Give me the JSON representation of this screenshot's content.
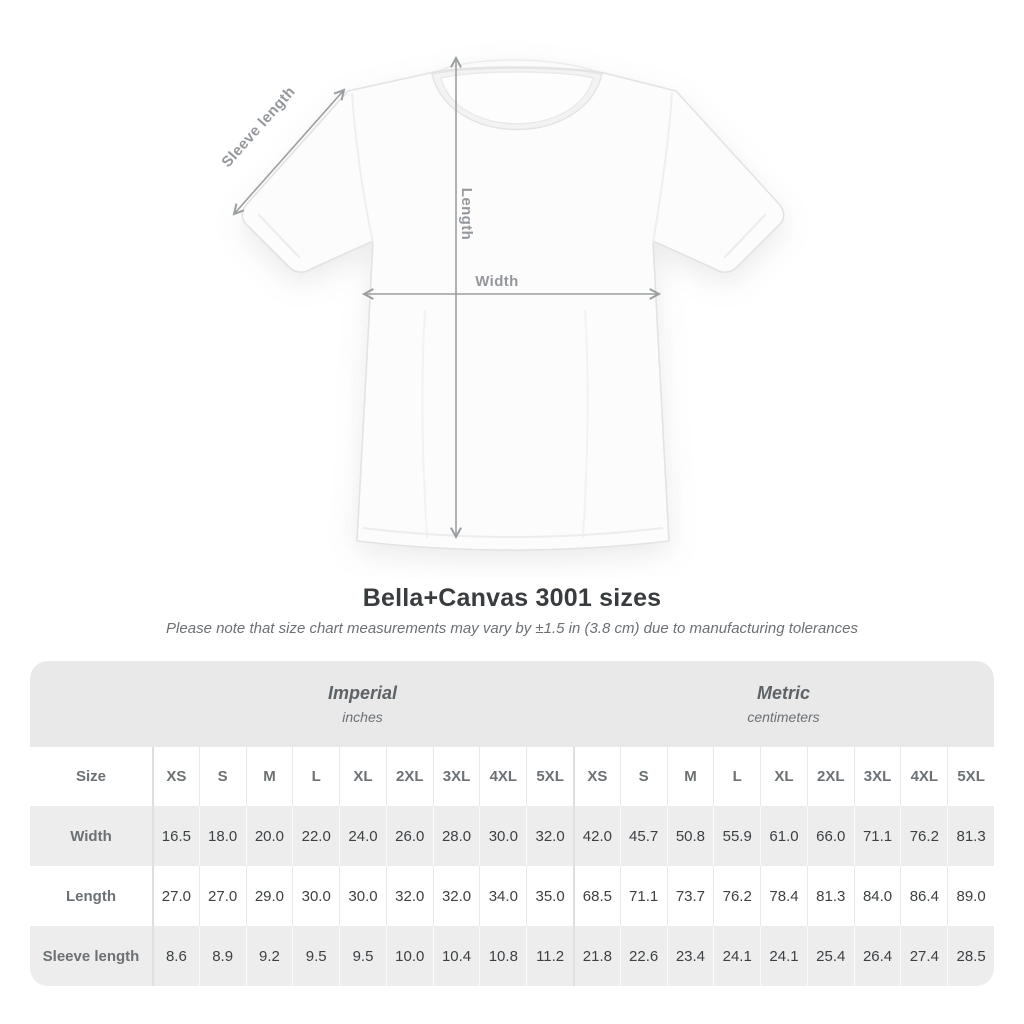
{
  "title": "Bella+Canvas 3001 sizes",
  "subtitle": "Please note that size chart measurements may vary by ±1.5 in (3.8 cm) due to manufacturing tolerances",
  "diagram": {
    "labels": {
      "sleeve": "Sleeve length",
      "length": "Length",
      "width": "Width"
    }
  },
  "table": {
    "size_header": "Size",
    "sizes": [
      "XS",
      "S",
      "M",
      "L",
      "XL",
      "2XL",
      "3XL",
      "4XL",
      "5XL"
    ],
    "unit_groups": [
      {
        "name": "Imperial",
        "unit": "inches"
      },
      {
        "name": "Metric",
        "unit": "centimeters"
      }
    ],
    "rows": [
      {
        "label": "Width",
        "imperial": [
          "16.5",
          "18.0",
          "20.0",
          "22.0",
          "24.0",
          "26.0",
          "28.0",
          "30.0",
          "32.0"
        ],
        "metric": [
          "42.0",
          "45.7",
          "50.8",
          "55.9",
          "61.0",
          "66.0",
          "71.1",
          "76.2",
          "81.3"
        ]
      },
      {
        "label": "Length",
        "imperial": [
          "27.0",
          "27.0",
          "29.0",
          "30.0",
          "30.0",
          "32.0",
          "32.0",
          "34.0",
          "35.0"
        ],
        "metric": [
          "68.5",
          "71.1",
          "73.7",
          "76.2",
          "78.4",
          "81.3",
          "84.0",
          "86.4",
          "89.0"
        ]
      },
      {
        "label": "Sleeve length",
        "imperial": [
          "8.6",
          "8.9",
          "9.2",
          "9.5",
          "9.5",
          "10.0",
          "10.4",
          "10.8",
          "11.2"
        ],
        "metric": [
          "21.8",
          "22.6",
          "23.4",
          "24.1",
          "24.1",
          "25.4",
          "26.4",
          "27.4",
          "28.5"
        ]
      }
    ]
  },
  "chart_data": {
    "type": "table",
    "title": "Bella+Canvas 3001 sizes",
    "note": "Measurements may vary by ±1.5 in (3.8 cm) due to manufacturing tolerances",
    "column_groups": [
      "Imperial (inches)",
      "Metric (centimeters)"
    ],
    "sizes": [
      "XS",
      "S",
      "M",
      "L",
      "XL",
      "2XL",
      "3XL",
      "4XL",
      "5XL"
    ],
    "measurements": [
      {
        "name": "Width",
        "imperial_in": [
          16.5,
          18.0,
          20.0,
          22.0,
          24.0,
          26.0,
          28.0,
          30.0,
          32.0
        ],
        "metric_cm": [
          42.0,
          45.7,
          50.8,
          55.9,
          61.0,
          66.0,
          71.1,
          76.2,
          81.3
        ]
      },
      {
        "name": "Length",
        "imperial_in": [
          27.0,
          27.0,
          29.0,
          30.0,
          30.0,
          32.0,
          32.0,
          34.0,
          35.0
        ],
        "metric_cm": [
          68.5,
          71.1,
          73.7,
          76.2,
          78.4,
          81.3,
          84.0,
          86.4,
          89.0
        ]
      },
      {
        "name": "Sleeve length",
        "imperial_in": [
          8.6,
          8.9,
          9.2,
          9.5,
          9.5,
          10.0,
          10.4,
          10.8,
          11.2
        ],
        "metric_cm": [
          21.8,
          22.6,
          23.4,
          24.1,
          24.1,
          25.4,
          26.4,
          27.4,
          28.5
        ]
      }
    ]
  },
  "colors": {
    "unit_band_bg": "#e9e9e9",
    "alt_row_bg": "#ededed",
    "value_text": "#3d4144",
    "label_text": "#6b7175",
    "annotation": "#94989c",
    "title_text": "#393c3f"
  }
}
